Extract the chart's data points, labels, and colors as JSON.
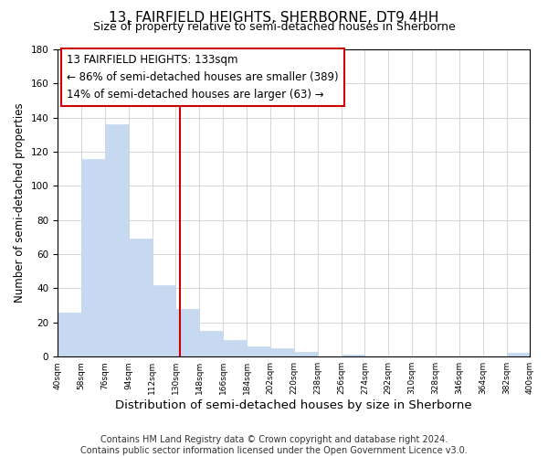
{
  "title": "13, FAIRFIELD HEIGHTS, SHERBORNE, DT9 4HH",
  "subtitle": "Size of property relative to semi-detached houses in Sherborne",
  "bar_edges": [
    40,
    58,
    76,
    94,
    112,
    130,
    148,
    166,
    184,
    202,
    220,
    238,
    256,
    274,
    292,
    310,
    328,
    346,
    364,
    382,
    400
  ],
  "bar_heights": [
    26,
    116,
    136,
    69,
    42,
    28,
    15,
    10,
    6,
    5,
    3,
    0,
    1,
    0,
    0,
    0,
    0,
    0,
    0,
    2
  ],
  "bar_color": "#c6d9f0",
  "bar_edge_color": "#c6d9f0",
  "property_line_x": 133,
  "property_line_color": "#cc0000",
  "annotation_line1": "13 FAIRFIELD HEIGHTS: 133sqm",
  "annotation_line2": "← 86% of semi-detached houses are smaller (389)",
  "annotation_line3": "14% of semi-detached houses are larger (63) →",
  "annotation_fontsize": 8.5,
  "xlabel": "Distribution of semi-detached houses by size in Sherborne",
  "ylabel": "Number of semi-detached properties",
  "ylim": [
    0,
    180
  ],
  "yticks": [
    0,
    20,
    40,
    60,
    80,
    100,
    120,
    140,
    160,
    180
  ],
  "xtick_labels": [
    "40sqm",
    "58sqm",
    "76sqm",
    "94sqm",
    "112sqm",
    "130sqm",
    "148sqm",
    "166sqm",
    "184sqm",
    "202sqm",
    "220sqm",
    "238sqm",
    "256sqm",
    "274sqm",
    "292sqm",
    "310sqm",
    "328sqm",
    "346sqm",
    "364sqm",
    "382sqm",
    "400sqm"
  ],
  "footnote": "Contains HM Land Registry data © Crown copyright and database right 2024.\nContains public sector information licensed under the Open Government Licence v3.0.",
  "title_fontsize": 11,
  "subtitle_fontsize": 9,
  "xlabel_fontsize": 9.5,
  "ylabel_fontsize": 8.5,
  "footnote_fontsize": 7,
  "grid_color": "#d0d0d0",
  "background_color": "#ffffff"
}
